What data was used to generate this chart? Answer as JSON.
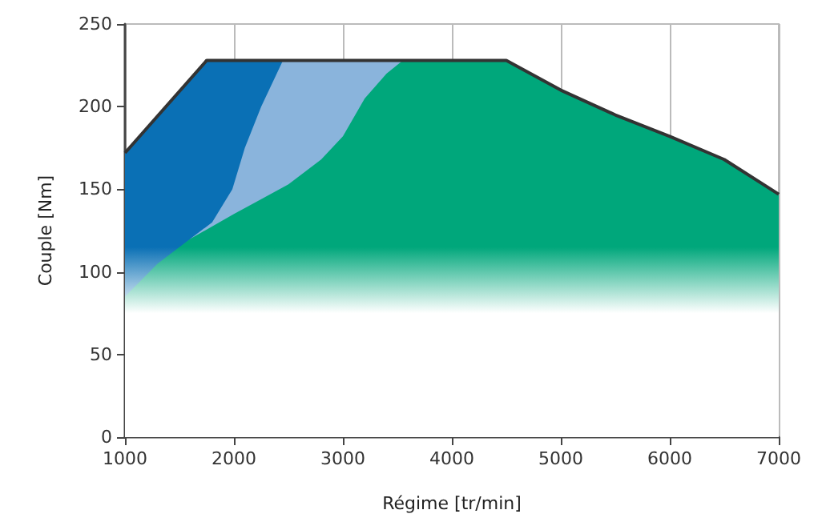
{
  "chart_data": {
    "type": "area",
    "xlabel": "Régime [tr/min]",
    "ylabel": "Couple [Nm]",
    "xlim": [
      1000,
      7000
    ],
    "xticks": [
      1000,
      2000,
      3000,
      4000,
      5000,
      6000,
      7000
    ],
    "ylim": [
      0,
      250
    ],
    "yticks": [
      0,
      50,
      100,
      150,
      200,
      250
    ],
    "grid": "x",
    "series": [
      {
        "color": "#0a70b5",
        "x": [
          1000,
          1750,
          2450
        ],
        "values": [
          172,
          228,
          228
        ]
      },
      {
        "color": "#8ab4dc",
        "x": [
          1600,
          1800,
          1985,
          2100,
          2250,
          2450,
          3550
        ],
        "values": [
          120,
          130,
          150,
          175,
          200,
          228,
          228
        ]
      },
      {
        "color": "#00a77b",
        "x": [
          1000,
          1300,
          1600,
          2000,
          2500,
          2800,
          3000,
          3200,
          3400,
          3550,
          4500,
          5000,
          5500,
          6000,
          6500,
          7000
        ],
        "values": [
          85,
          105,
          120,
          135,
          153,
          168,
          182,
          205,
          220,
          228,
          228,
          210,
          195,
          182,
          168,
          147
        ]
      },
      {
        "type": "line",
        "color": "#333333",
        "x": [
          1000,
          1750,
          4500,
          5000,
          5500,
          6000,
          6500,
          7000
        ],
        "values": [
          172,
          228,
          228,
          210,
          195,
          182,
          168,
          147
        ]
      }
    ]
  }
}
